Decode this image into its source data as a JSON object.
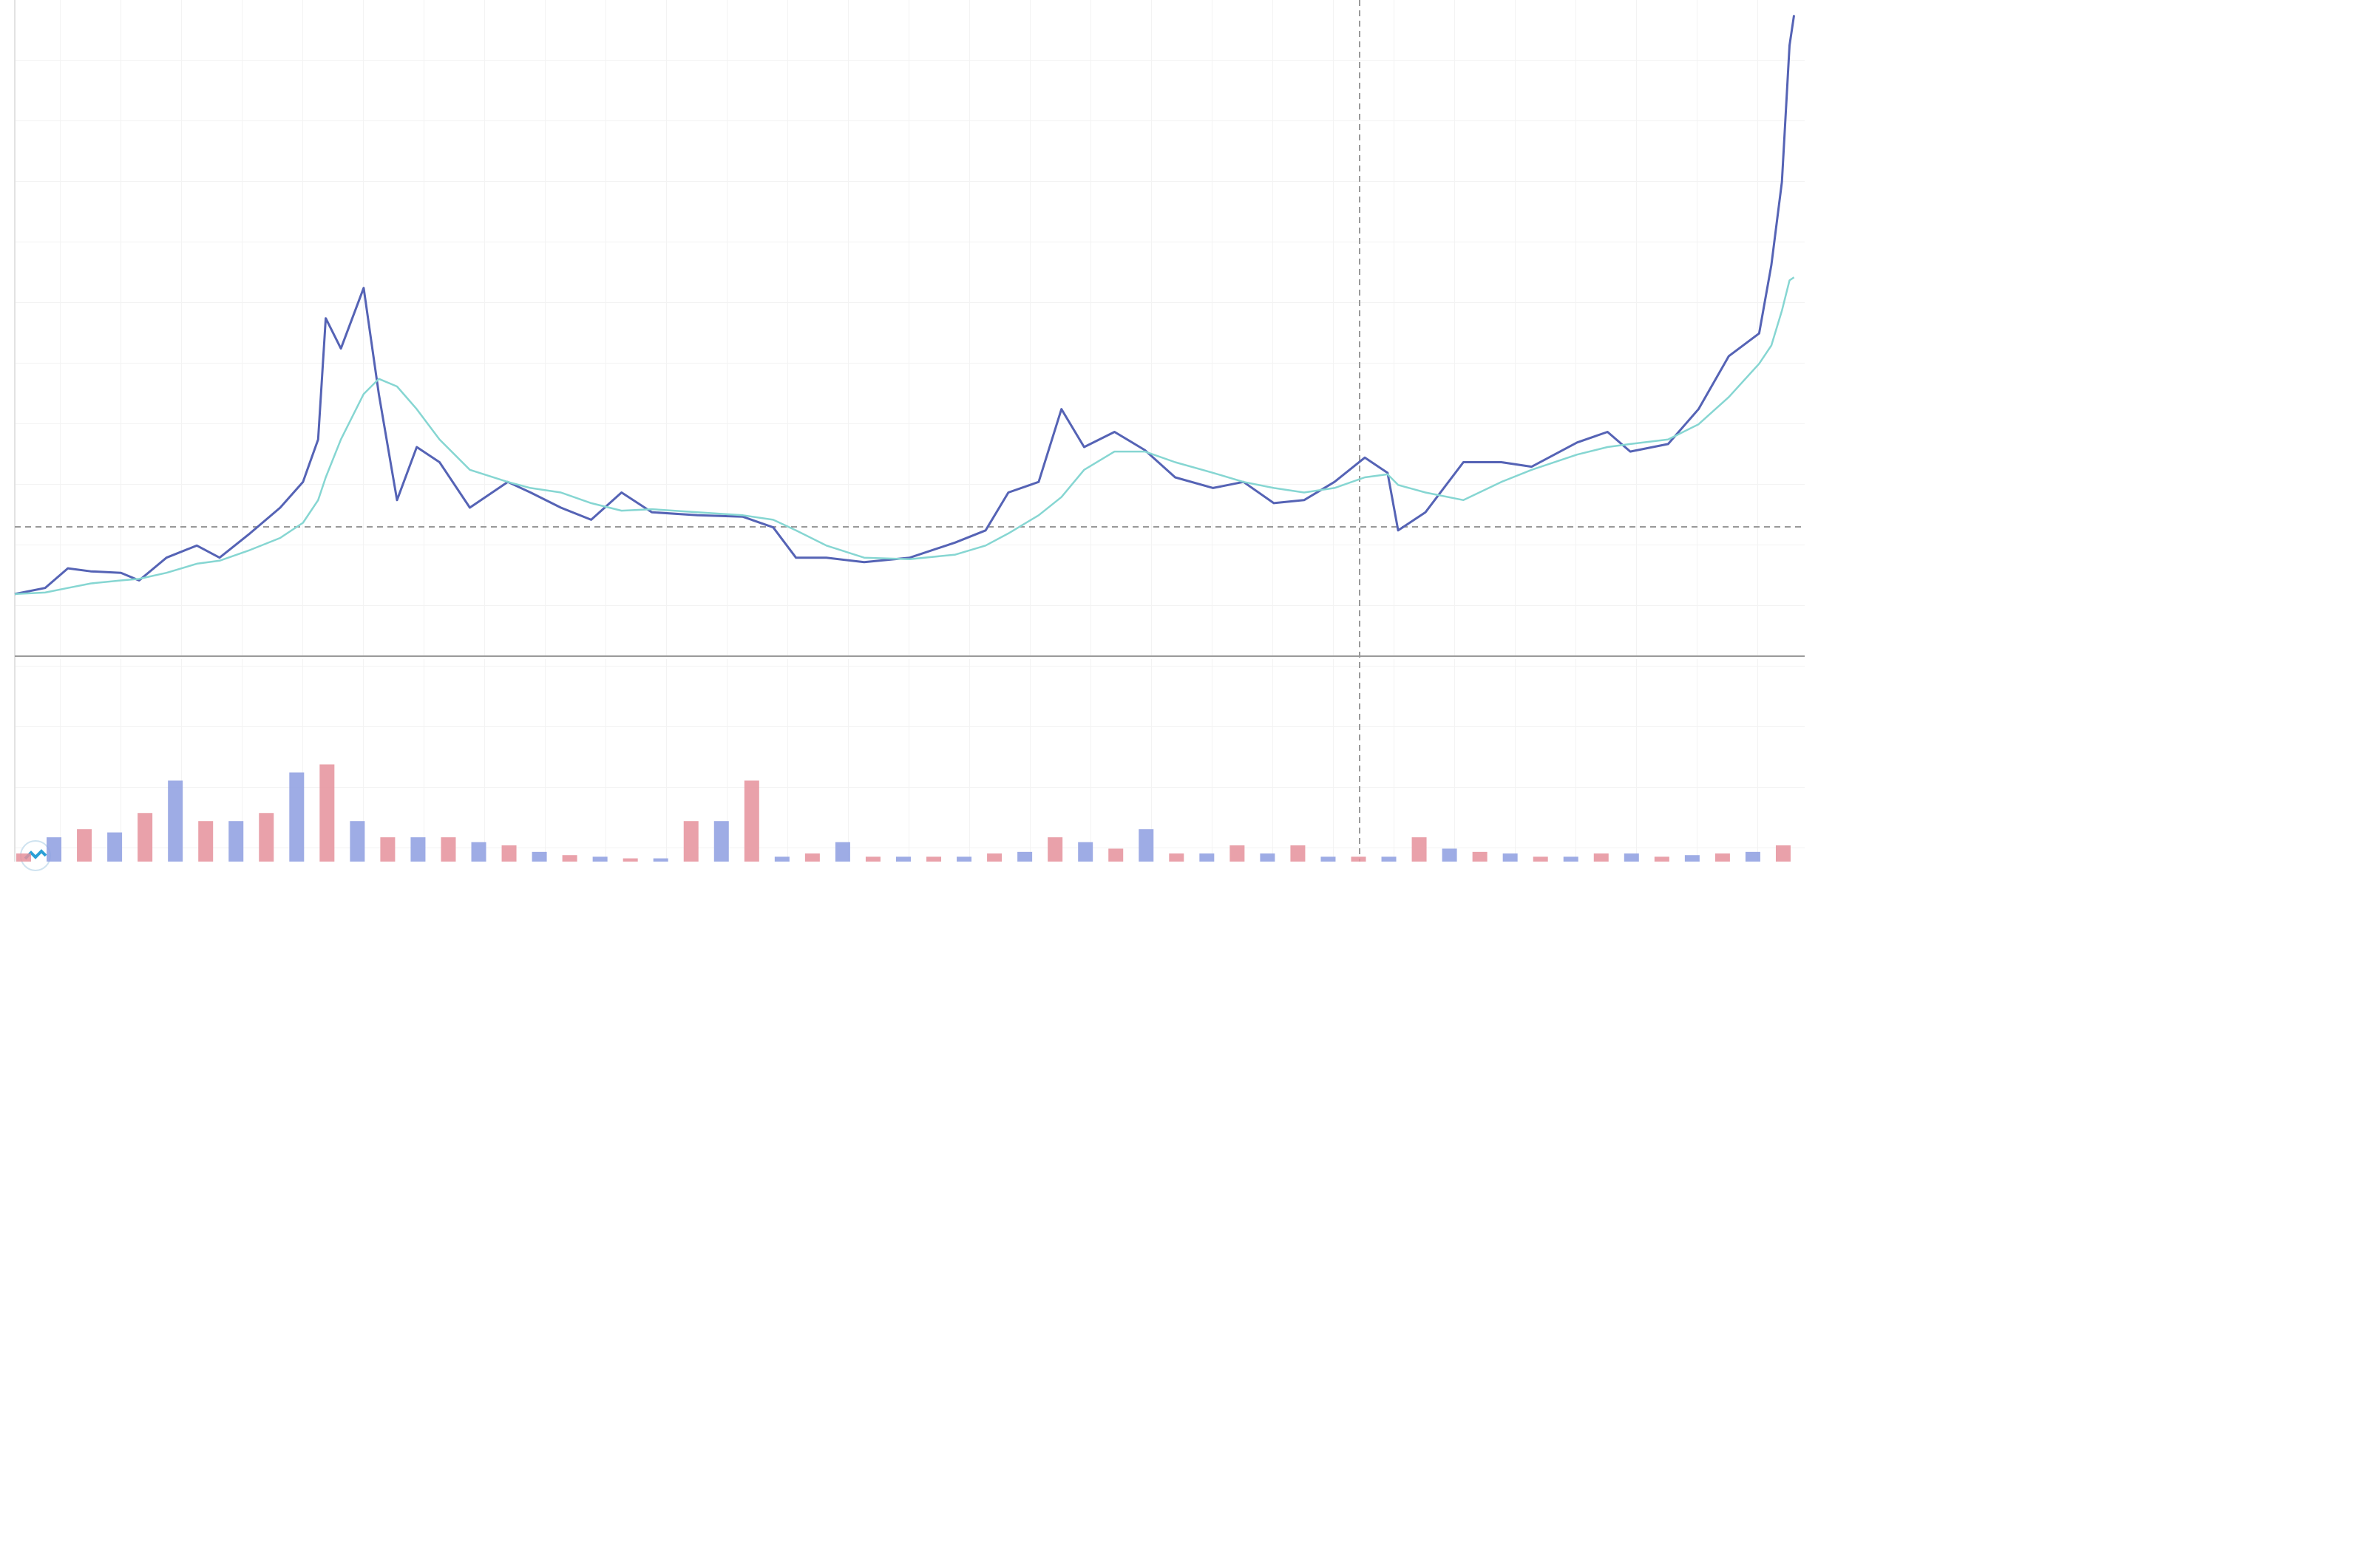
{
  "chart_data": [
    {
      "type": "line",
      "x": [
        10,
        30,
        45,
        60,
        80,
        92,
        110,
        130,
        145,
        165,
        185,
        200,
        210,
        215,
        225,
        240,
        250,
        262,
        275,
        290,
        310,
        335,
        350,
        370,
        390,
        410,
        430,
        460,
        490,
        510,
        525,
        545,
        570,
        600,
        630,
        650,
        665,
        685,
        700,
        715,
        735,
        755,
        775,
        800,
        820,
        840,
        860,
        880,
        900,
        915,
        922,
        940,
        965,
        990,
        1010,
        1040,
        1060,
        1075,
        1100,
        1120,
        1140,
        1160,
        1168,
        1175,
        1180,
        1183
      ],
      "xlim": [
        10,
        1190
      ],
      "ylim": [
        0,
        433
      ],
      "series": [
        {
          "color": "#5563b5",
          "values": [
            41,
            45,
            58,
            56,
            55,
            50,
            65,
            73,
            65,
            81,
            98,
            115,
            143,
            223,
            203,
            243,
            173,
            103,
            138,
            128,
            98,
            115,
            108,
            98,
            90,
            108,
            95,
            93,
            92,
            85,
            65,
            65,
            62,
            65,
            75,
            83,
            108,
            115,
            163,
            138,
            148,
            136,
            118,
            111,
            115,
            101,
            103,
            115,
            131,
            121,
            83,
            95,
            128,
            128,
            125,
            141,
            148,
            135,
            140,
            163,
            198,
            213,
            258,
            313,
            403,
            423
          ]
        },
        {
          "color": "#86d6d2",
          "values": [
            41,
            42,
            45,
            48,
            50,
            51,
            55,
            61,
            63,
            70,
            78,
            88,
            103,
            118,
            143,
            173,
            183,
            178,
            163,
            143,
            123,
            115,
            111,
            108,
            101,
            96,
            97,
            95,
            93,
            90,
            83,
            73,
            65,
            64,
            67,
            73,
            81,
            93,
            105,
            123,
            135,
            135,
            128,
            121,
            115,
            111,
            108,
            111,
            118,
            120,
            113,
            108,
            103,
            115,
            123,
            133,
            138,
            140,
            143,
            153,
            171,
            193,
            205,
            228,
            248,
            250
          ]
        }
      ]
    },
    {
      "type": "bar",
      "x": [
        10,
        30,
        50,
        70,
        90,
        110,
        130,
        150,
        170,
        190,
        210,
        230,
        250,
        270,
        290,
        310,
        330,
        350,
        370,
        390,
        410,
        430,
        450,
        470,
        490,
        510,
        530,
        550,
        570,
        590,
        610,
        630,
        650,
        670,
        690,
        710,
        730,
        750,
        770,
        790,
        810,
        830,
        850,
        870,
        890,
        910,
        930,
        950,
        970,
        990,
        1010,
        1030,
        1050,
        1070,
        1090,
        1110,
        1130,
        1150,
        1170
      ],
      "xlim": [
        10,
        1190
      ],
      "ylim": [
        0,
        125
      ],
      "colors": [
        "#e5919b",
        "#8d9ee0"
      ],
      "values": [
        5,
        15,
        20,
        18,
        30,
        50,
        25,
        25,
        30,
        55,
        60,
        25,
        15,
        15,
        15,
        12,
        10,
        6,
        4,
        3,
        2,
        2,
        25,
        25,
        50,
        3,
        5,
        12,
        3,
        3,
        3,
        3,
        5,
        6,
        15,
        12,
        8,
        20,
        5,
        5,
        10,
        5,
        10,
        3,
        3,
        3,
        15,
        8,
        6,
        5,
        3,
        3,
        5,
        5,
        3,
        4,
        5,
        6,
        10
      ]
    }
  ]
}
